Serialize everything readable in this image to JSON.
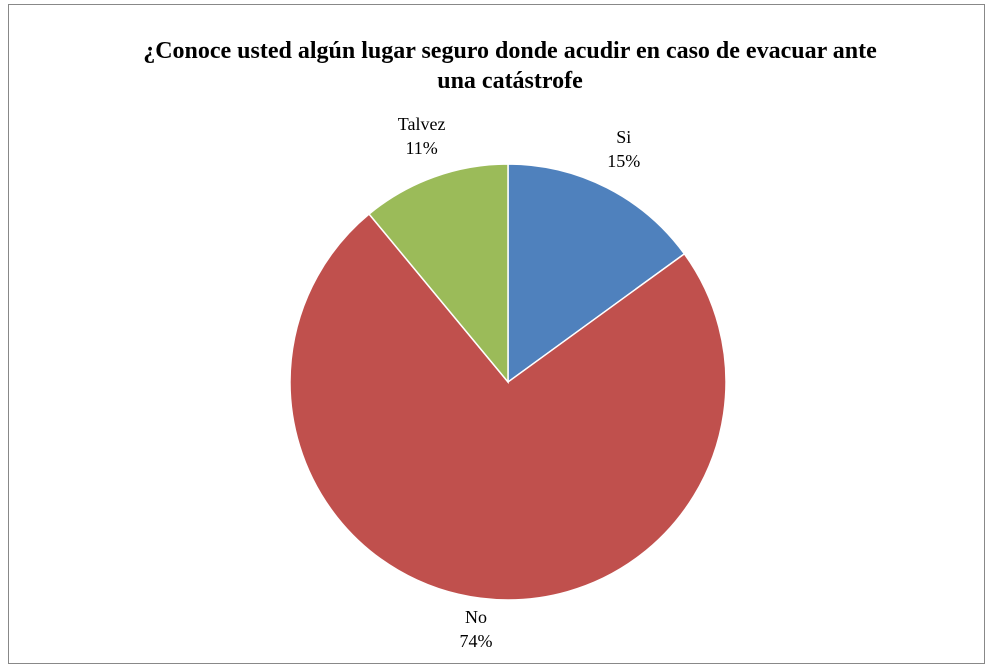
{
  "chart_data": {
    "type": "pie",
    "title": "¿Conoce usted algún lugar seguro donde acudir en caso de evacuar ante una catástrofe",
    "categories": [
      "Si",
      "No",
      "Talvez"
    ],
    "values": [
      15,
      74,
      11
    ],
    "value_labels": [
      "15%",
      "74%",
      "11%"
    ],
    "colors": [
      "#4f81bd",
      "#c0504d",
      "#9bbb59"
    ]
  }
}
